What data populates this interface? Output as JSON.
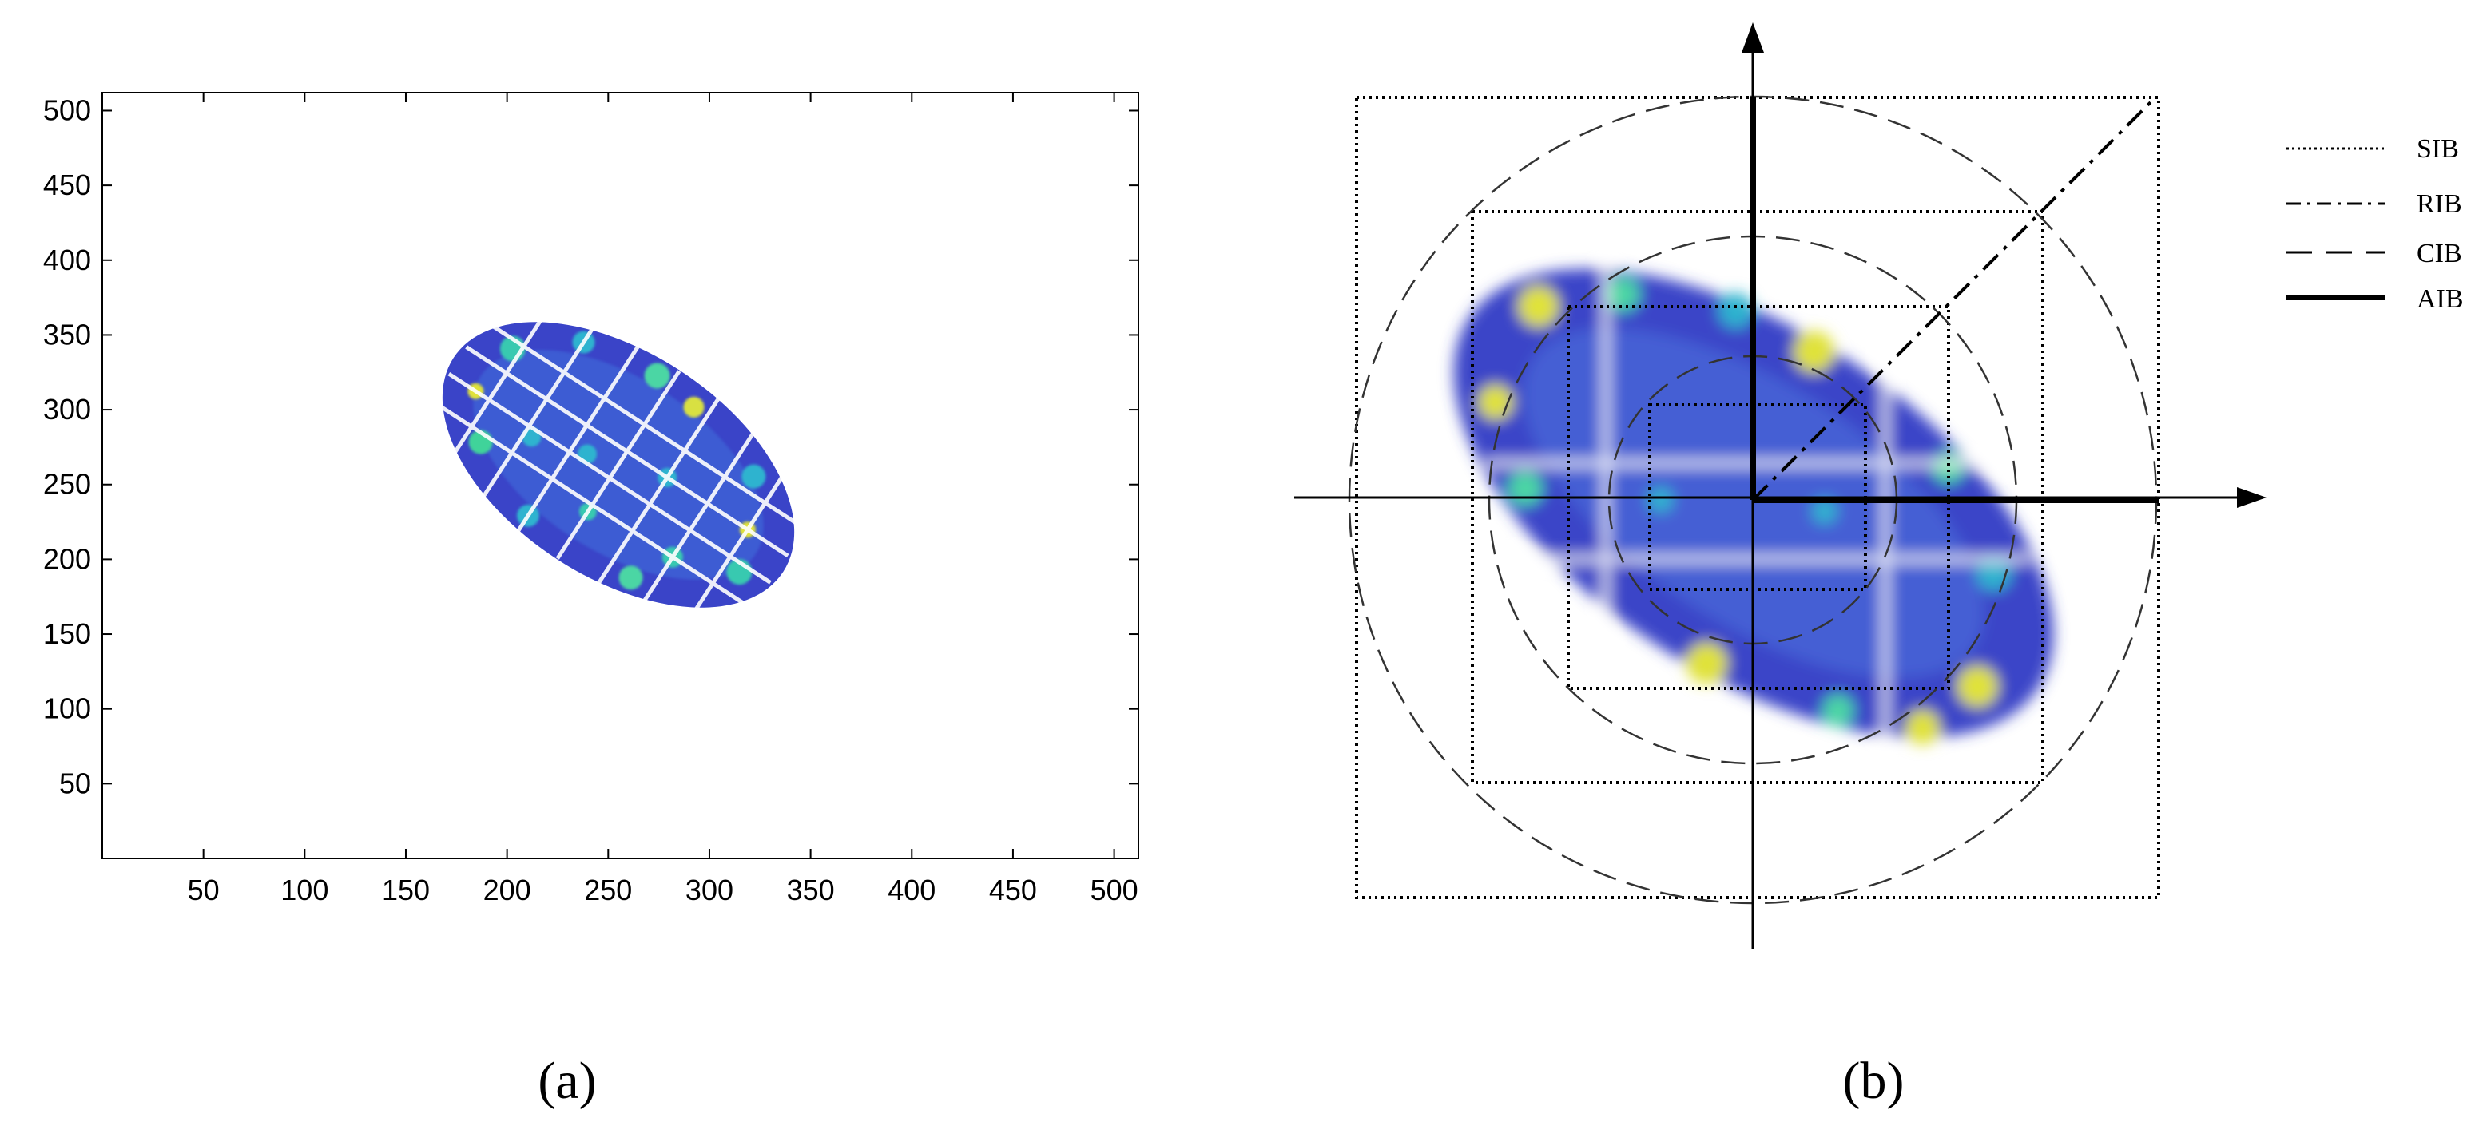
{
  "figure": {
    "panels": [
      {
        "caption": "(a)"
      },
      {
        "caption": "(b)"
      }
    ]
  },
  "chart_data": [
    {
      "type": "heatmap",
      "title": "",
      "xlabel": "",
      "ylabel": "",
      "xlim": [
        0,
        512
      ],
      "ylim": [
        0,
        512
      ],
      "x_ticks": [
        "50",
        "100",
        "150",
        "200",
        "250",
        "300",
        "350",
        "400",
        "450",
        "500"
      ],
      "y_ticks": [
        "50",
        "100",
        "150",
        "200",
        "250",
        "300",
        "350",
        "400",
        "450",
        "500"
      ],
      "data_region": {
        "shape": "ellipse",
        "center": [
          257,
          258
        ],
        "semi_axes": [
          98,
          56
        ],
        "rotation_deg": -33,
        "x_range": [
          163,
          350
        ],
        "y_range": [
          165,
          348
        ]
      },
      "colormap": [
        "#2b2fb8",
        "#3e63d8",
        "#1fa6c9",
        "#4fd0a0",
        "#e0e23a"
      ],
      "grid": false
    },
    {
      "type": "diagram",
      "legend": [
        {
          "label": "SIB",
          "style": "dotted"
        },
        {
          "label": "RIB",
          "style": "dash-dot"
        },
        {
          "label": "CIB",
          "style": "dashed"
        },
        {
          "label": "AIB",
          "style": "solid-thick"
        }
      ],
      "legend_placement": "top-right"
    }
  ]
}
